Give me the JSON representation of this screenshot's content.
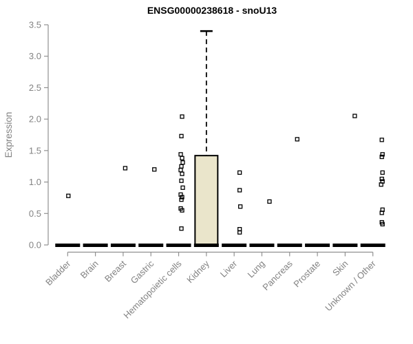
{
  "title": "ENSG00000238618 - snoU13",
  "chart_data": {
    "type": "boxplot",
    "title": "ENSG00000238618 - snoU13",
    "xlabel": "",
    "ylabel": "Expression",
    "ylim": [
      0.0,
      3.5
    ],
    "yticks": [
      "0.0",
      "0.5",
      "1.0",
      "1.5",
      "2.0",
      "2.5",
      "3.0",
      "3.5"
    ],
    "grid": false,
    "legend": false,
    "marker": "open-square",
    "axis_color": "#909090",
    "text_color": "#828282",
    "box_fill": "#EAE5CB",
    "box_stroke": "#000000",
    "categories": [
      "Bladder",
      "Brain",
      "Breast",
      "Gastric",
      "Hematopoietic cells",
      "Kidney",
      "Liver",
      "Lung",
      "Pancreas",
      "Prostate",
      "Skin",
      "Unknown / Other"
    ],
    "series": [
      {
        "category": "Bladder",
        "median": 0.0,
        "box": null,
        "points": [
          0.78
        ],
        "x_jitter": [
          1
        ]
      },
      {
        "category": "Brain",
        "median": 0.0,
        "box": null,
        "points": [],
        "x_jitter": []
      },
      {
        "category": "Breast",
        "median": 0.0,
        "box": null,
        "points": [
          1.22
        ],
        "x_jitter": [
          3
        ]
      },
      {
        "category": "Gastric",
        "median": 0.0,
        "box": null,
        "points": [
          1.2
        ],
        "x_jitter": [
          5
        ]
      },
      {
        "category": "Hematopoietic cells",
        "median": 0.0,
        "box": null,
        "points": [
          2.04,
          1.73,
          1.44,
          1.38,
          1.31,
          1.25,
          1.19,
          1.13,
          1.02,
          0.91,
          0.8,
          0.76,
          0.72,
          0.58,
          0.55,
          0.26
        ],
        "x_jitter": [
          5,
          4,
          3,
          5,
          6,
          4,
          3,
          5,
          4,
          6,
          3,
          5,
          4,
          3,
          5,
          4
        ]
      },
      {
        "category": "Kidney",
        "median": 0.02,
        "box": {
          "q1": 0.0,
          "q3": 1.42,
          "whisker_high": 3.4
        },
        "points": [],
        "x_jitter": []
      },
      {
        "category": "Liver",
        "median": 0.0,
        "box": null,
        "points": [
          1.15,
          0.87,
          0.61,
          0.25,
          0.2
        ],
        "x_jitter": [
          8,
          8,
          9,
          8,
          8
        ]
      },
      {
        "category": "Lung",
        "median": 0.0,
        "box": null,
        "points": [
          0.69
        ],
        "x_jitter": [
          11
        ]
      },
      {
        "category": "Pancreas",
        "median": 0.0,
        "box": null,
        "points": [
          1.68
        ],
        "x_jitter": [
          11
        ]
      },
      {
        "category": "Prostate",
        "median": 0.0,
        "box": null,
        "points": [],
        "x_jitter": []
      },
      {
        "category": "Skin",
        "median": 0.0,
        "box": null,
        "points": [
          2.05
        ],
        "x_jitter": [
          14
        ]
      },
      {
        "category": "Unknown / Other",
        "median": 0.0,
        "box": null,
        "points": [
          1.67,
          1.44,
          1.4,
          1.15,
          1.05,
          1.01,
          0.96,
          0.56,
          0.51,
          0.36,
          0.33
        ],
        "x_jitter": [
          13,
          14,
          13,
          14,
          13,
          14,
          12,
          14,
          13,
          13,
          14
        ]
      }
    ]
  }
}
